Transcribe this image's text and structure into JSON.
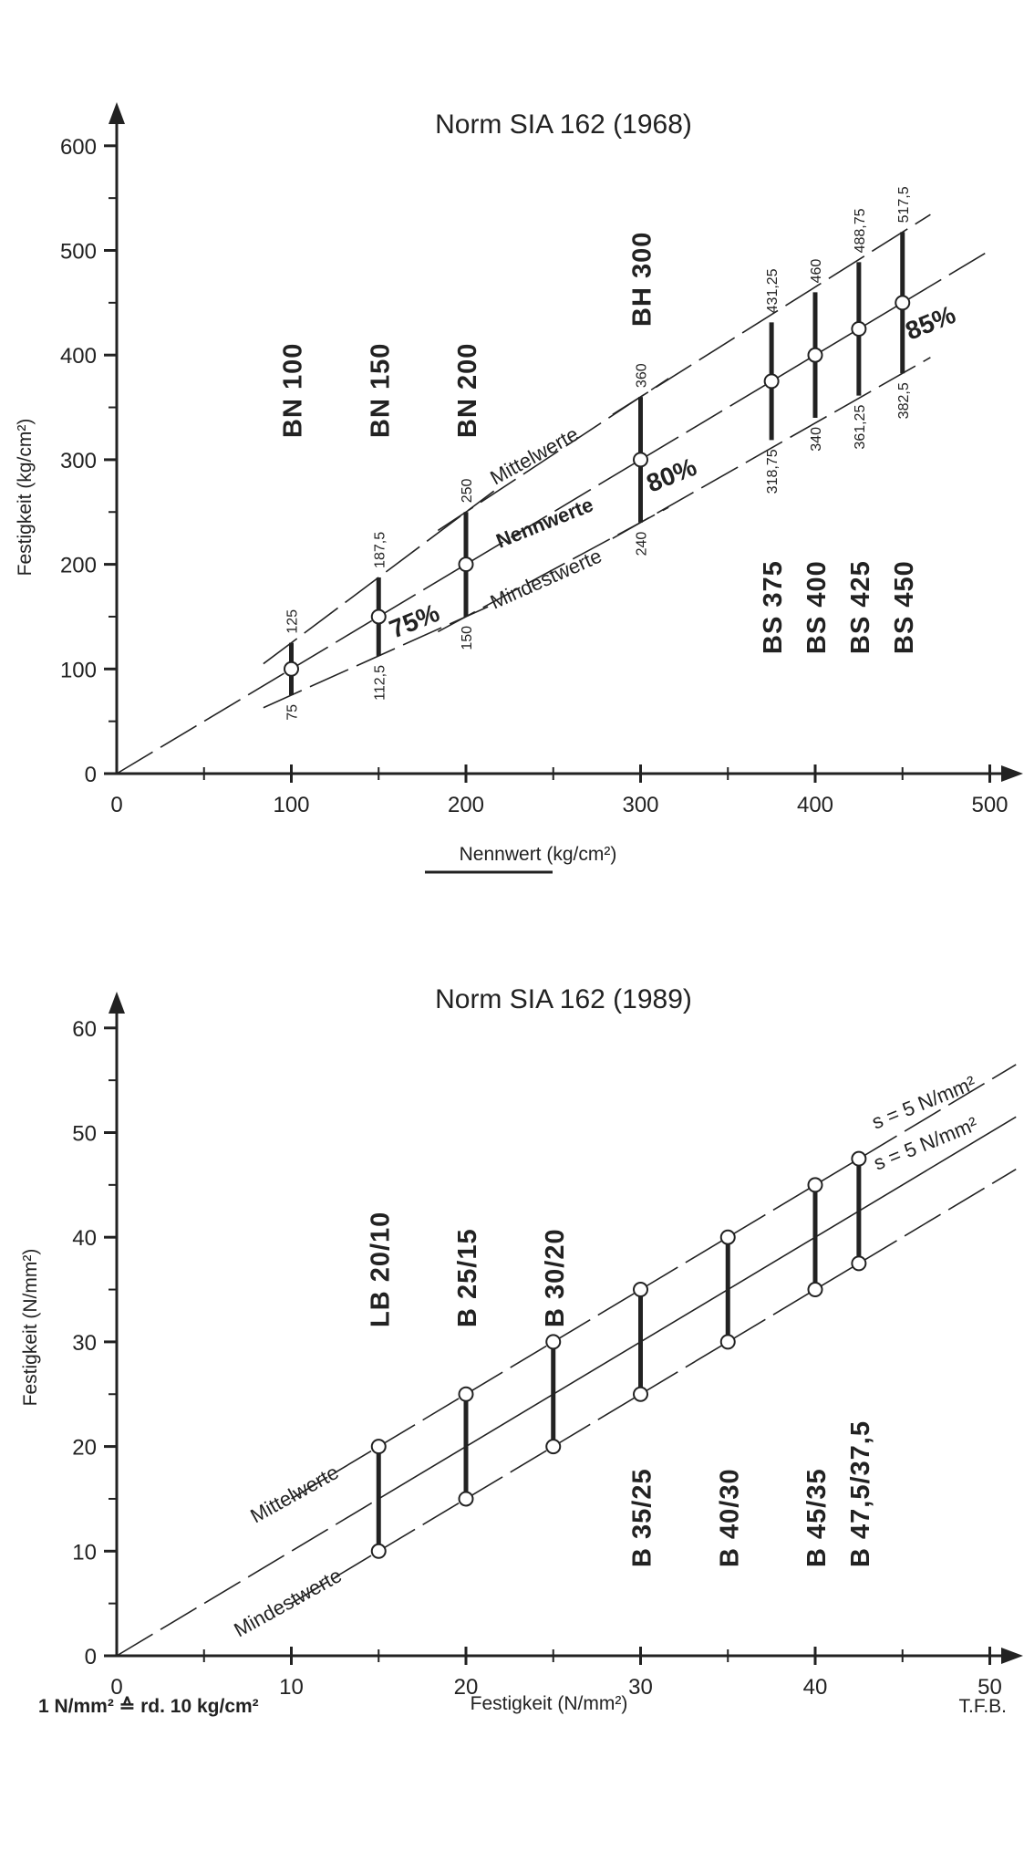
{
  "colors": {
    "ink": "#222222",
    "background": "#ffffff"
  },
  "chart_data": [
    {
      "type": "line",
      "title": "Norm SIA 162 (1968)",
      "xlabel": "Nennwert (kg/cm²)",
      "ylabel": "Festigkeit (kg/cm²)",
      "xlim": [
        0,
        500
      ],
      "ylim": [
        0,
        600
      ],
      "x_ticks": [
        "0",
        "100",
        "200",
        "300",
        "400",
        "500"
      ],
      "y_ticks": [
        "0",
        "100",
        "200",
        "300",
        "400",
        "500",
        "600"
      ],
      "series": [
        {
          "name": "Mittelwerte",
          "x": [
            100,
            150,
            200,
            300,
            375,
            400,
            425,
            450
          ],
          "values": [
            125,
            187.5,
            250,
            360,
            431.25,
            460,
            488.75,
            517.5
          ]
        },
        {
          "name": "Nennwerte",
          "x": [
            100,
            150,
            200,
            300,
            375,
            400,
            425,
            450
          ],
          "values": [
            100,
            150,
            200,
            300,
            375,
            400,
            425,
            450
          ]
        },
        {
          "name": "Mindestwerte",
          "x": [
            100,
            150,
            200,
            300,
            375,
            400,
            425,
            450
          ],
          "values": [
            75,
            112.5,
            150,
            240,
            318.75,
            340,
            361.25,
            382.5
          ]
        }
      ],
      "upper_labels": [
        "125",
        "187,5",
        "250",
        "360",
        "431,25",
        "460",
        "488,75",
        "517,5"
      ],
      "lower_labels": [
        "75",
        "112,5",
        "150",
        "240",
        "318,75",
        "340",
        "361,25",
        "382,5"
      ],
      "classes": [
        "BN 100",
        "BN 150",
        "BN 200",
        "BH 300",
        "BS 375",
        "BS 400",
        "BS 425",
        "BS 450"
      ],
      "percentages": [
        "75%",
        "80%",
        "85%"
      ],
      "grid": false
    },
    {
      "type": "line",
      "title": "Norm SIA 162 (1989)",
      "xlabel": "Festigkeit (N/mm²)",
      "ylabel": "Festigkeit (N/mm²)",
      "xlim": [
        0,
        50
      ],
      "ylim": [
        0,
        60
      ],
      "x_ticks": [
        "0",
        "10",
        "20",
        "30",
        "40",
        "50"
      ],
      "y_ticks": [
        "0",
        "10",
        "20",
        "30",
        "40",
        "50",
        "60"
      ],
      "series": [
        {
          "name": "Mittelwerte",
          "x": [
            15,
            20,
            25,
            30,
            35,
            40,
            42.5
          ],
          "values": [
            20,
            25,
            30,
            35,
            40,
            45,
            47.5
          ]
        },
        {
          "name": "Mindestwerte",
          "x": [
            15,
            20,
            25,
            30,
            35,
            40,
            42.5
          ],
          "values": [
            10,
            15,
            20,
            25,
            30,
            35,
            37.5
          ]
        }
      ],
      "classes": [
        "LB 20/10",
        "B 25/15",
        "B 30/20",
        "B 35/25",
        "B 40/30",
        "B 45/35",
        "B 47,5/37,5"
      ],
      "std_labels": [
        "s = 5 N/mm²",
        "s = 5 N/mm²"
      ],
      "grid": false
    }
  ],
  "footer": {
    "conversion": "1 N/mm² ≙ rd. 10 kg/cm²",
    "credit": "T.F.B."
  }
}
